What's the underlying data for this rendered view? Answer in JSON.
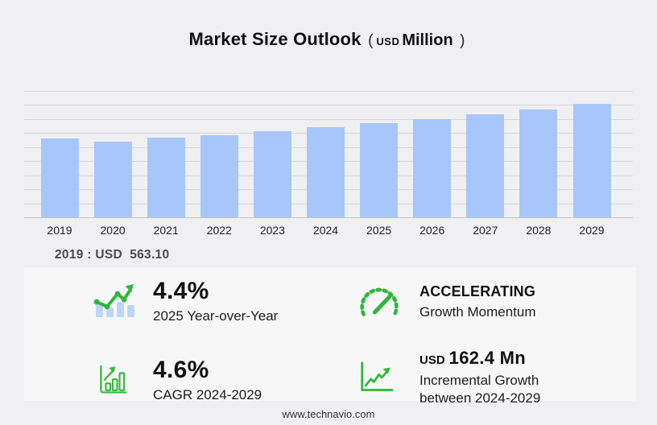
{
  "title": {
    "main": "Market Size Outlook",
    "paren_open": "(",
    "unit_small": "USD",
    "unit_large": "Million",
    "paren_close": ")"
  },
  "chart_data": {
    "type": "bar",
    "title": "Market Size Outlook (USD Million)",
    "xlabel": "",
    "ylabel": "USD Million",
    "categories": [
      "2019",
      "2020",
      "2021",
      "2022",
      "2023",
      "2024",
      "2025",
      "2026",
      "2027",
      "2028",
      "2029"
    ],
    "values": [
      563.1,
      541.0,
      565.0,
      584.0,
      612.0,
      643.7,
      672.0,
      701.0,
      734.0,
      769.0,
      806.1
    ],
    "ylim": [
      0,
      900
    ],
    "gridline_interval": 100,
    "grid": "horizontal",
    "legend": "none",
    "bar_color": "#a7c7fa",
    "notes": "2019 value labeled on chart as USD 563.10; 2025 YoY 4.4%; CAGR 2024-2029 4.6%; incremental growth 2024-2029 USD 162.4 Mn"
  },
  "base_year_note": "2019 : USD  563.10",
  "stats": [
    {
      "icon": "bar-trend-up-icon",
      "value": "4.4%",
      "label": "2025 Year-over-Year"
    },
    {
      "icon": "speedometer-icon",
      "value": "ACCELERATING",
      "label": "Growth Momentum"
    },
    {
      "icon": "outlined-bars-arrow-icon",
      "value": "4.6%",
      "label": "CAGR 2024-2029"
    },
    {
      "icon": "axes-growth-arrow-icon",
      "value_prefix": "USD",
      "value": "162.4 Mn",
      "label_line1": "Incremental Growth",
      "label_line2": "between 2024-2029"
    }
  ],
  "footer": {
    "url": "www.technavio.com"
  },
  "colors": {
    "bg": "#f0f0f2",
    "panel": "#f7f7f8",
    "bar": "#a7c7fa",
    "barlight": "#bcd5f9",
    "grid": "#d7d7d9",
    "axis": "#c6c6c8",
    "green": "#2eb73a"
  }
}
